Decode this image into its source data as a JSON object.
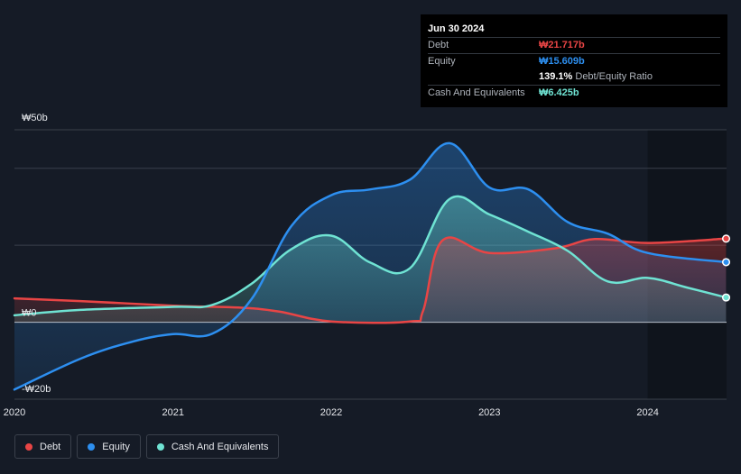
{
  "tooltip": {
    "date": "Jun 30 2024",
    "debt_label": "Debt",
    "debt_value": "₩21.717b",
    "equity_label": "Equity",
    "equity_value": "₩15.609b",
    "ratio_value": "139.1%",
    "ratio_label": "Debt/Equity Ratio",
    "cash_label": "Cash And Equivalents",
    "cash_value": "₩6.425b"
  },
  "colors": {
    "debt": "#e84545",
    "equity": "#2d8ff0",
    "cash": "#6fe3d3",
    "background": "#151b26",
    "grid": "#3a404b"
  },
  "legend": [
    {
      "name": "Debt",
      "color": "#e84545"
    },
    {
      "name": "Equity",
      "color": "#2d8ff0"
    },
    {
      "name": "Cash And Equivalents",
      "color": "#6fe3d3"
    }
  ],
  "chart_data": {
    "type": "area",
    "y_unit": "KRW billions",
    "ylim": [
      -20,
      50
    ],
    "xlim": [
      "2020-01-01",
      "2024-07-01"
    ],
    "y_ticks": [
      {
        "value": 50,
        "label": "₩50b"
      },
      {
        "value": 0,
        "label": "₩0"
      },
      {
        "value": -20,
        "label": "-₩20b"
      }
    ],
    "x_ticks": [
      "2020",
      "2021",
      "2022",
      "2023",
      "2024"
    ],
    "grid": true,
    "highlight_from": "2024-01-01",
    "series": [
      {
        "name": "Debt",
        "color": "#e84545",
        "points": [
          [
            "2020-01-01",
            6.2
          ],
          [
            "2020-06-01",
            5.5
          ],
          [
            "2021-01-01",
            4.3
          ],
          [
            "2021-06-01",
            3.8
          ],
          [
            "2021-09-01",
            2.8
          ],
          [
            "2022-01-01",
            0.2
          ],
          [
            "2022-07-01",
            0.2
          ],
          [
            "2022-08-01",
            3.0
          ],
          [
            "2022-09-15",
            21.3
          ],
          [
            "2023-01-01",
            18.0
          ],
          [
            "2023-06-01",
            19.2
          ],
          [
            "2023-09-01",
            21.6
          ],
          [
            "2024-01-01",
            20.6
          ],
          [
            "2024-06-30",
            21.717
          ]
        ]
      },
      {
        "name": "Equity",
        "color": "#2d8ff0",
        "points": [
          [
            "2020-01-01",
            -17.5
          ],
          [
            "2020-06-01",
            -9.5
          ],
          [
            "2020-10-01",
            -5.0
          ],
          [
            "2021-01-01",
            -3.1
          ],
          [
            "2021-04-01",
            -3.0
          ],
          [
            "2021-07-01",
            6.0
          ],
          [
            "2021-10-01",
            25.0
          ],
          [
            "2022-01-01",
            33.0
          ],
          [
            "2022-04-01",
            34.5
          ],
          [
            "2022-07-01",
            37.0
          ],
          [
            "2022-10-01",
            46.5
          ],
          [
            "2023-01-01",
            35.0
          ],
          [
            "2023-04-01",
            34.5
          ],
          [
            "2023-07-01",
            26.0
          ],
          [
            "2023-10-01",
            23.0
          ],
          [
            "2024-01-01",
            18.0
          ],
          [
            "2024-06-30",
            15.609
          ]
        ]
      },
      {
        "name": "Cash And Equivalents",
        "color": "#6fe3d3",
        "points": [
          [
            "2020-01-01",
            1.8
          ],
          [
            "2020-06-01",
            3.2
          ],
          [
            "2021-01-01",
            4.0
          ],
          [
            "2021-04-01",
            4.5
          ],
          [
            "2021-07-01",
            10.0
          ],
          [
            "2021-10-01",
            19.0
          ],
          [
            "2022-01-01",
            22.5
          ],
          [
            "2022-04-01",
            15.5
          ],
          [
            "2022-07-01",
            14.0
          ],
          [
            "2022-10-01",
            32.0
          ],
          [
            "2023-01-01",
            28.0
          ],
          [
            "2023-04-01",
            23.5
          ],
          [
            "2023-07-01",
            18.5
          ],
          [
            "2023-10-01",
            10.6
          ],
          [
            "2024-01-01",
            11.5
          ],
          [
            "2024-04-01",
            9.0
          ],
          [
            "2024-06-30",
            6.425
          ]
        ]
      }
    ]
  }
}
